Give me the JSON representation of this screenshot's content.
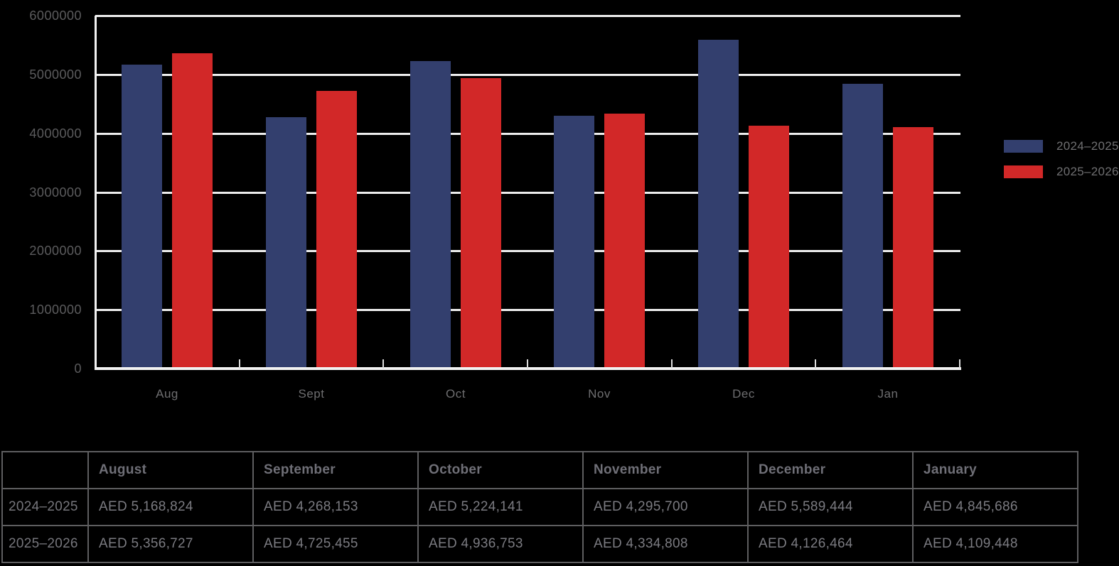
{
  "page": {
    "background": "#000000"
  },
  "chart_data": {
    "type": "bar",
    "categories": [
      "Aug",
      "Sept",
      "Oct",
      "Nov",
      "Dec",
      "Jan"
    ],
    "series": [
      {
        "name": "2024–2025",
        "color": "#333F6E",
        "values": [
          5168824,
          4268153,
          5224141,
          4295700,
          5589444,
          4845686
        ]
      },
      {
        "name": "2025–2026",
        "color": "#D22828",
        "values": [
          5356727,
          4725455,
          4936753,
          4334808,
          4126464,
          4109448
        ]
      }
    ],
    "title": "",
    "xlabel": "",
    "ylabel": "",
    "ylim": [
      0,
      6000000
    ],
    "y_tick_labels": [
      "6000000",
      "5000000",
      "4000000",
      "3000000",
      "2000000",
      "1000000",
      "0"
    ],
    "grid": true,
    "legend_position": "right",
    "axis_text_color": "#5c5c5e",
    "grid_color": "#ededed"
  },
  "table": {
    "headers": [
      "",
      "August",
      "September",
      "October",
      "November",
      "December",
      "January"
    ],
    "rows": [
      {
        "label": "2024–2025",
        "cells": [
          "AED 5,168,824",
          "AED 4,268,153",
          "AED 5,224,141",
          "AED 4,295,700",
          "AED 5,589,444",
          "AED 4,845,686"
        ]
      },
      {
        "label": "2025–2026",
        "cells": [
          "AED 5,356,727",
          "AED 4,725,455",
          "AED 4,936,753",
          "AED 4,334,808",
          "AED 4,126,464",
          "AED 4,109,448"
        ]
      }
    ]
  }
}
